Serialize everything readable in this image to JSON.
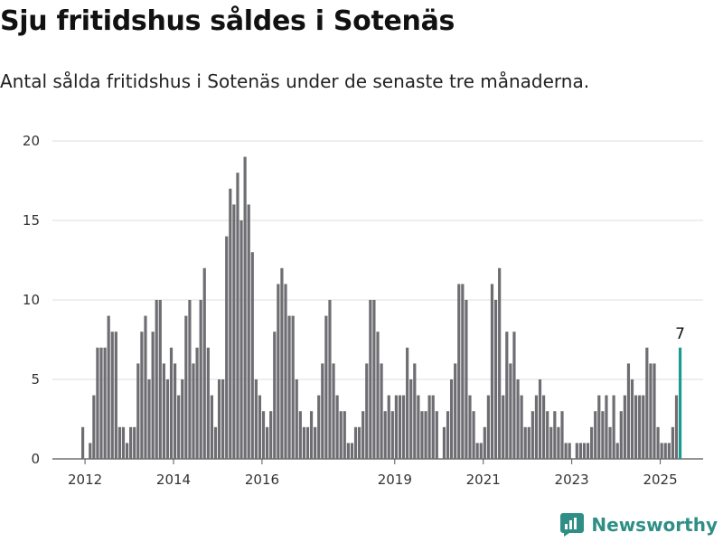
{
  "header": {
    "title": "Sju fritidshus såldes i Sotenäs",
    "subtitle": "Antal sålda fritidshus i Sotenäs under de senaste tre månaderna."
  },
  "brand": {
    "name": "Newsworthy",
    "color": "#2f8f86"
  },
  "chart_data": {
    "type": "bar",
    "title": "Sju fritidshus såldes i Sotenäs",
    "subtitle": "Antal sålda fritidshus i Sotenäs under de senaste tre månaderna.",
    "x_start": "2011-12",
    "values": [
      2,
      0,
      1,
      4,
      7,
      7,
      7,
      9,
      8,
      8,
      2,
      2,
      1,
      2,
      2,
      6,
      8,
      9,
      5,
      8,
      10,
      10,
      6,
      5,
      7,
      6,
      4,
      5,
      9,
      10,
      6,
      7,
      10,
      12,
      7,
      4,
      2,
      5,
      5,
      14,
      17,
      16,
      18,
      15,
      19,
      16,
      13,
      5,
      4,
      3,
      2,
      3,
      8,
      11,
      12,
      11,
      9,
      9,
      5,
      3,
      2,
      2,
      3,
      2,
      4,
      6,
      9,
      10,
      6,
      4,
      3,
      3,
      1,
      1,
      2,
      2,
      3,
      6,
      10,
      10,
      8,
      6,
      3,
      4,
      3,
      4,
      4,
      4,
      7,
      5,
      6,
      4,
      3,
      3,
      4,
      4,
      3,
      0,
      2,
      3,
      5,
      6,
      11,
      11,
      10,
      4,
      3,
      1,
      1,
      2,
      4,
      11,
      10,
      12,
      4,
      8,
      6,
      8,
      5,
      4,
      2,
      2,
      3,
      4,
      5,
      4,
      3,
      2,
      3,
      2,
      3,
      1,
      1,
      0,
      1,
      1,
      1,
      1,
      2,
      3,
      4,
      3,
      4,
      2,
      4,
      1,
      3,
      4,
      6,
      5,
      4,
      4,
      4,
      7,
      6,
      6,
      2,
      1,
      1,
      1,
      2,
      4,
      7
    ],
    "highlight_last": true,
    "bar_color": "#6e6d72",
    "highlight_color": "#1a9b92",
    "last_value_label": "7",
    "y_ticks": [
      0,
      5,
      10,
      15,
      20
    ],
    "ylim": [
      0,
      20
    ],
    "x_tick_labels": [
      "2012",
      "2014",
      "2016",
      "2019",
      "2021",
      "2023",
      "2025"
    ],
    "x_tick_years": [
      2012,
      2014,
      2016,
      2019,
      2021,
      2023,
      2025
    ],
    "grid": true,
    "legend": "none"
  }
}
